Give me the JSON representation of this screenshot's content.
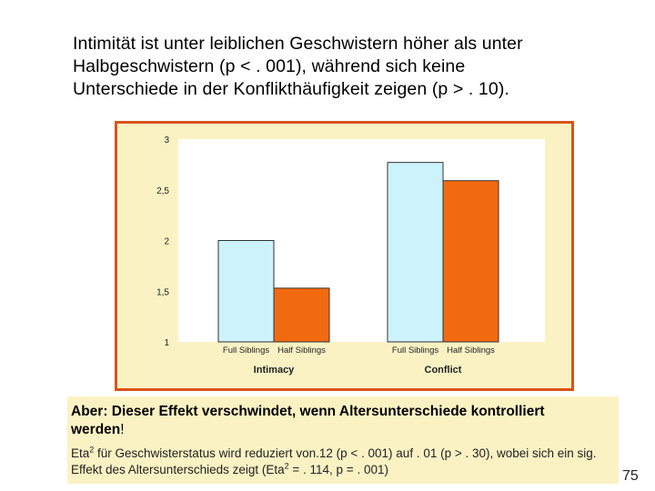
{
  "intro": {
    "line1": "Intimität ist unter leiblichen Geschwistern höher als unter",
    "line2": "Halbgeschwistern (p < . 001), während sich keine",
    "line3": "Unterschiede in der Konflikthäufigkeit zeigen (p > . 10)."
  },
  "chart_data": {
    "type": "bar",
    "groups": [
      "Intimacy",
      "Conflict"
    ],
    "categories": [
      "Full Siblings",
      "Half Siblings"
    ],
    "series": [
      {
        "values": [
          2.0,
          1.53
        ]
      },
      {
        "values": [
          2.77,
          2.59
        ]
      }
    ],
    "ylim": [
      1,
      3
    ],
    "yticks": [
      "1",
      "1,5",
      "2",
      "2,5",
      "3"
    ],
    "grid": false,
    "colors": {
      "full_siblings": "#ccf2fc",
      "half_siblings": "#f26a10",
      "plot_bg": "#ffffff",
      "frame_bg": "#fbf2c4",
      "frame_border": "#d9531a"
    }
  },
  "note": {
    "bold_text": "Aber: Dieser Effekt verschwindet, wenn Altersunterschiede kontrolliert werden",
    "bold_suffix": "!",
    "text_a": "Eta",
    "text_a_sup": "2",
    "text_b": " für Geschwisterstatus wird reduziert von.12 (p < . 001) auf . 01 (p > . 30), wobei sich ein sig. Effekt des Altersunterschieds zeigt (Eta",
    "text_c_sup": "2",
    "text_d": " = . 114, p = . 001)"
  },
  "page_number": "75"
}
